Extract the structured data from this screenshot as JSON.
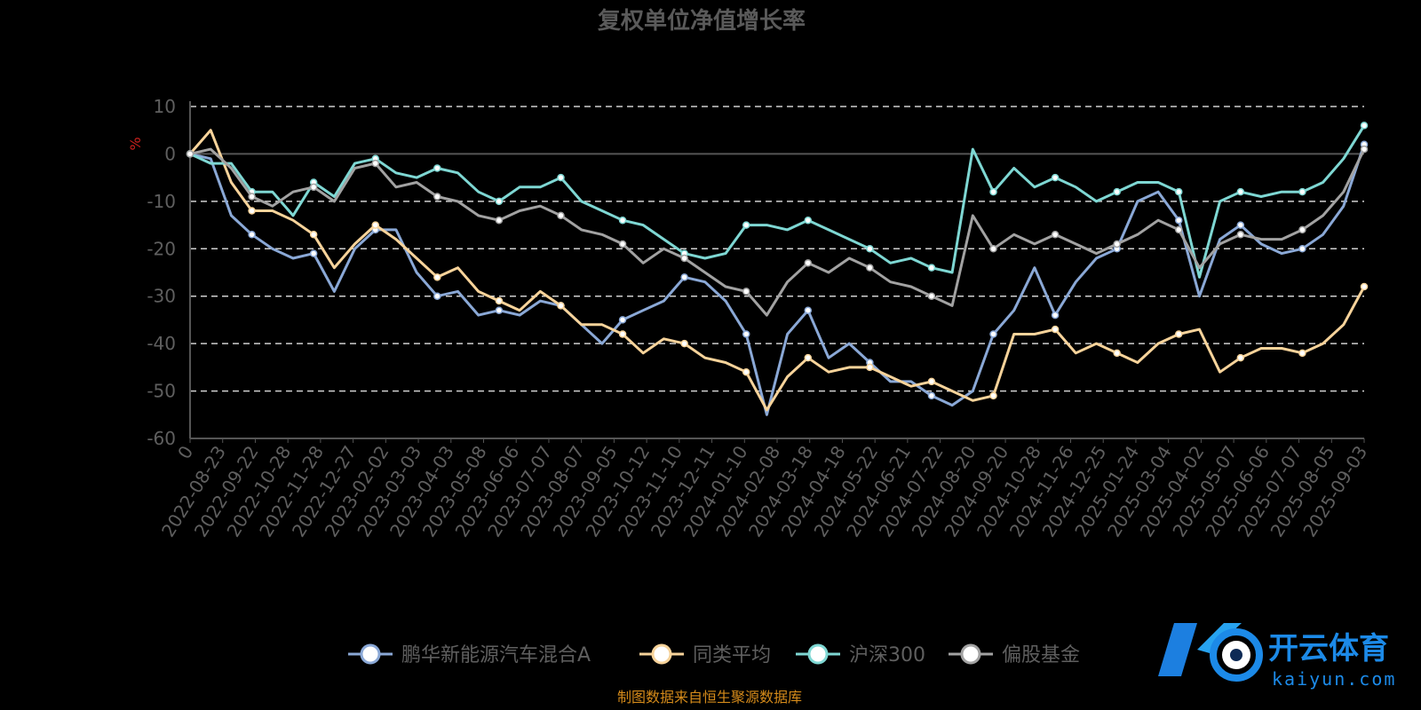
{
  "watermark": {
    "logo_letters": "KO",
    "name_cn": "开云体育",
    "name_en": "kaiyun.com"
  },
  "source_note": "制图数据来自恒生聚源数据库",
  "colors": {
    "background": "#000000",
    "grid": "#cfcfcf",
    "axis": "#555555"
  },
  "chart_data": {
    "type": "line",
    "title": "复权单位净值增长率",
    "ylabel": "%",
    "ylim": [
      -60,
      10
    ],
    "yticks": [
      10,
      0,
      -10,
      -20,
      -30,
      -40,
      -50,
      -60
    ],
    "grid": true,
    "legend_position": "bottom",
    "x_tick_labels": [
      "0",
      "2022-08-23",
      "2022-09-22",
      "2022-10-28",
      "2022-11-28",
      "2022-12-27",
      "2023-02-02",
      "2023-03-03",
      "2023-04-03",
      "2023-05-08",
      "2023-06-06",
      "2023-07-07",
      "2023-08-07",
      "2023-09-05",
      "2023-10-12",
      "2023-11-10",
      "2023-12-11",
      "2024-01-10",
      "2024-02-08",
      "2024-03-18",
      "2024-04-18",
      "2024-05-22",
      "2024-06-21",
      "2024-07-22",
      "2024-08-20",
      "2024-09-20",
      "2024-10-28",
      "2024-11-26",
      "2024-12-25",
      "2025-01-24",
      "2025-03-04",
      "2025-04-02",
      "2025-05-07",
      "2025-06-06",
      "2025-07-07",
      "2025-08-05",
      "2025-09-03"
    ],
    "series": [
      {
        "name": "鹏华新能源汽车混合A",
        "color": "#8aa8d6",
        "values": [
          0,
          -1,
          -13,
          -17,
          -20,
          -22,
          -21,
          -29,
          -20,
          -16,
          -16,
          -25,
          -30,
          -29,
          -34,
          -33,
          -34,
          -31,
          -32,
          -36,
          -40,
          -35,
          -33,
          -31,
          -26,
          -27,
          -31,
          -38,
          -55,
          -38,
          -33,
          -43,
          -40,
          -44,
          -48,
          -48,
          -51,
          -53,
          -50,
          -38,
          -33,
          -24,
          -34,
          -27,
          -22,
          -20,
          -10,
          -8,
          -14,
          -30,
          -18,
          -15,
          -19,
          -21,
          -20,
          -17,
          -11,
          2
        ]
      },
      {
        "name": "同类平均",
        "color": "#f7d39a",
        "values": [
          0,
          5,
          -6,
          -12,
          -12,
          -14,
          -17,
          -24,
          -19,
          -15,
          -18,
          -22,
          -26,
          -24,
          -29,
          -31,
          -33,
          -29,
          -32,
          -36,
          -36,
          -38,
          -42,
          -39,
          -40,
          -43,
          -44,
          -46,
          -54,
          -47,
          -43,
          -46,
          -45,
          -45,
          -47,
          -49,
          -48,
          -50,
          -52,
          -51,
          -38,
          -38,
          -37,
          -42,
          -40,
          -42,
          -44,
          -40,
          -38,
          -37,
          -46,
          -43,
          -41,
          -41,
          -42,
          -40,
          -36,
          -28
        ]
      },
      {
        "name": "沪深300",
        "color": "#7ed7d3",
        "values": [
          0,
          -2,
          -2,
          -8,
          -8,
          -13,
          -6,
          -9,
          -2,
          -1,
          -4,
          -5,
          -3,
          -4,
          -8,
          -10,
          -7,
          -7,
          -5,
          -10,
          -12,
          -14,
          -15,
          -18,
          -21,
          -22,
          -21,
          -15,
          -15,
          -16,
          -14,
          -16,
          -18,
          -20,
          -23,
          -22,
          -24,
          -25,
          1,
          -8,
          -3,
          -7,
          -5,
          -7,
          -10,
          -8,
          -6,
          -6,
          -8,
          -26,
          -10,
          -8,
          -9,
          -8,
          -8,
          -6,
          -1,
          6
        ]
      },
      {
        "name": "偏股基金",
        "color": "#a2a2a2",
        "values": [
          0,
          1,
          -3,
          -9,
          -11,
          -8,
          -7,
          -10,
          -3,
          -2,
          -7,
          -6,
          -9,
          -10,
          -13,
          -14,
          -12,
          -11,
          -13,
          -16,
          -17,
          -19,
          -23,
          -20,
          -22,
          -25,
          -28,
          -29,
          -34,
          -27,
          -23,
          -25,
          -22,
          -24,
          -27,
          -28,
          -30,
          -32,
          -13,
          -20,
          -17,
          -19,
          -17,
          -19,
          -21,
          -19,
          -17,
          -14,
          -16,
          -24,
          -19,
          -17,
          -18,
          -18,
          -16,
          -13,
          -8,
          1
        ]
      }
    ]
  }
}
